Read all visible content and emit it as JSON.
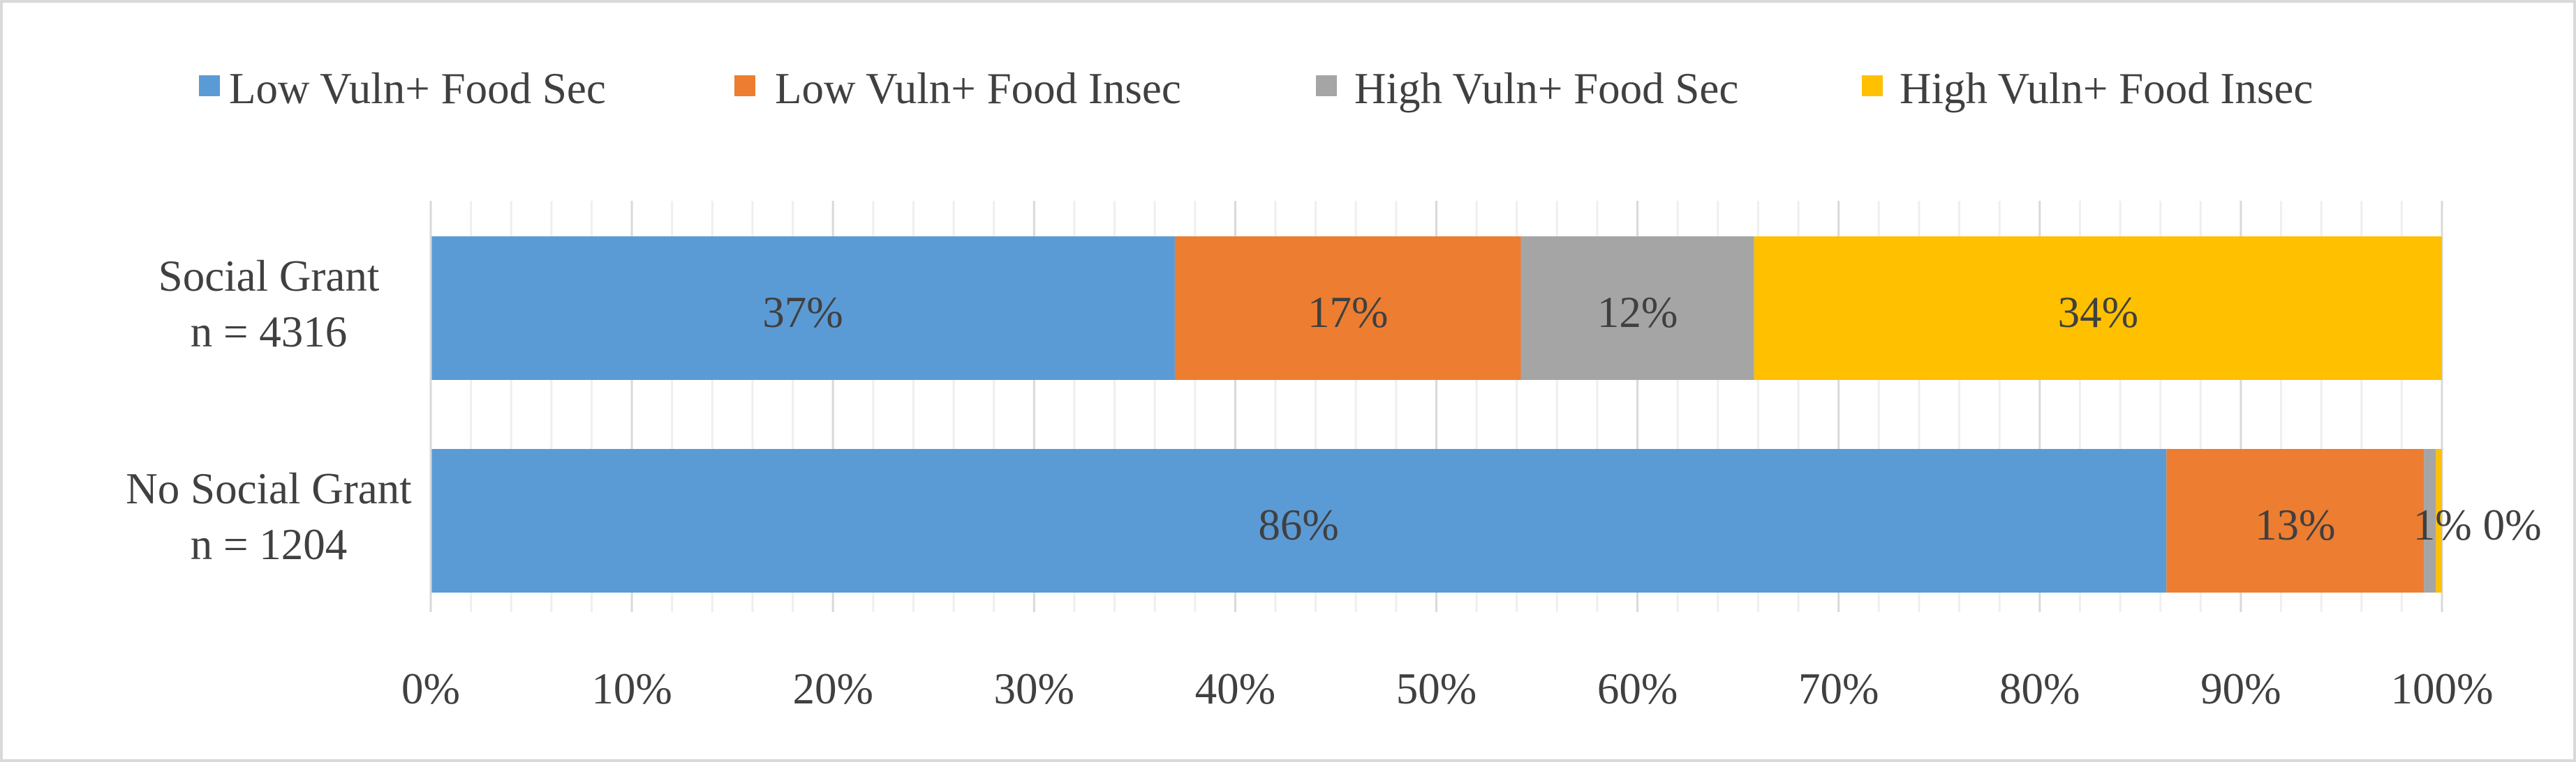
{
  "chart_data": {
    "type": "bar",
    "orientation": "horizontal",
    "stacked": "percent",
    "categories": [
      "Social Grant n = 4316",
      "No Social Grant n = 1204"
    ],
    "category_lines": [
      [
        "Social Grant",
        "n = 4316"
      ],
      [
        "No Social Grant",
        "n = 1204"
      ]
    ],
    "series": [
      {
        "name": "Low Vuln+ Food Sec",
        "color": "#5B9BD5",
        "values": [
          37,
          86.3
        ],
        "labels": [
          "37%",
          "86%"
        ]
      },
      {
        "name": "Low Vuln+ Food Insec",
        "color": "#ED7D31",
        "values": [
          17.2,
          12.8
        ],
        "labels": [
          "17%",
          "13%"
        ]
      },
      {
        "name": "High Vuln+ Food Sec",
        "color": "#A5A5A5",
        "values": [
          11.6,
          0.6
        ],
        "labels": [
          "12%",
          "1%"
        ]
      },
      {
        "name": "High Vuln+ Food Insec",
        "color": "#FFC000",
        "values": [
          34.2,
          0.3
        ],
        "labels": [
          "34%",
          "0%"
        ]
      }
    ],
    "xlim": [
      0,
      100
    ],
    "xticks": [
      0,
      10,
      20,
      30,
      40,
      50,
      60,
      70,
      80,
      90,
      100
    ],
    "xtick_labels": [
      "0%",
      "10%",
      "20%",
      "30%",
      "40%",
      "50%",
      "60%",
      "70%",
      "80%",
      "90%",
      "100%"
    ],
    "grid": true,
    "legend_position": "top"
  }
}
